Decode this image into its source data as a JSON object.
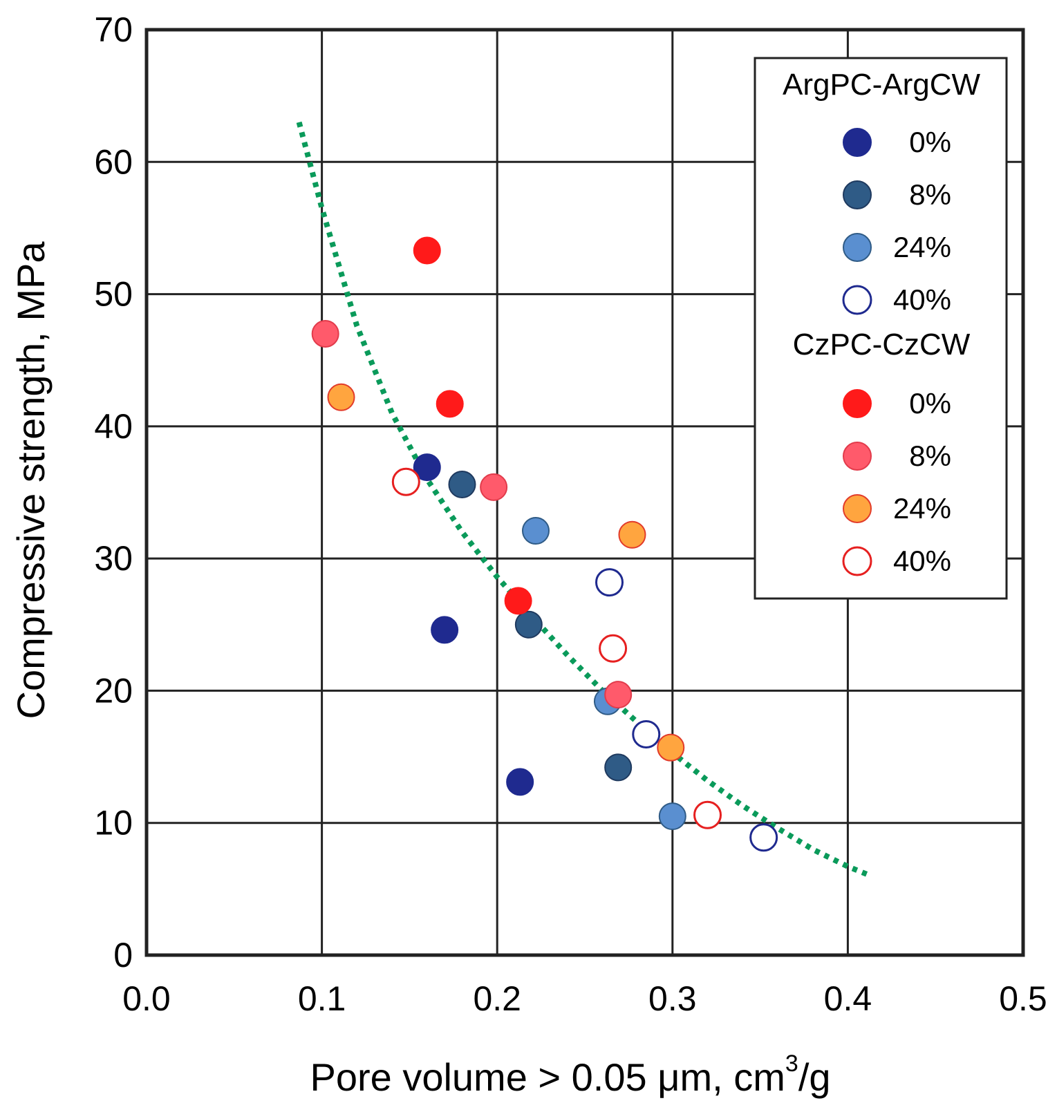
{
  "chart_data": {
    "type": "scatter",
    "xlabel_main": "Pore volume > 0.05 μm, cm",
    "xlabel_sup": "3",
    "xlabel_tail": "/g",
    "ylabel": "Compressive strength, MPa",
    "xlim": [
      0.0,
      0.5
    ],
    "ylim": [
      0,
      70
    ],
    "xticks": [
      "0.0",
      "0.1",
      "0.2",
      "0.3",
      "0.4",
      "0.5"
    ],
    "yticks": [
      "0",
      "10",
      "20",
      "30",
      "40",
      "50",
      "60",
      "70"
    ],
    "grid": true,
    "legend_position": "top-right",
    "legend_groups": [
      {
        "title": "ArgPC-ArgCW",
        "series": [
          {
            "name": "0%",
            "fill": "#1f2a8f",
            "stroke": "#1f2a8f",
            "hollow": false,
            "points": [
              [
                0.16,
                36.9
              ],
              [
                0.17,
                24.6
              ],
              [
                0.213,
                13.1
              ]
            ]
          },
          {
            "name": "8%",
            "fill": "#2f5b86",
            "stroke": "#1f3a5f",
            "hollow": false,
            "points": [
              [
                0.18,
                35.6
              ],
              [
                0.218,
                25.0
              ],
              [
                0.269,
                14.2
              ]
            ]
          },
          {
            "name": "24%",
            "fill": "#5a8fd0",
            "stroke": "#2f5b86",
            "hollow": false,
            "points": [
              [
                0.222,
                32.1
              ],
              [
                0.263,
                19.2
              ],
              [
                0.3,
                10.5
              ]
            ]
          },
          {
            "name": "40%",
            "fill": "#ffffff",
            "stroke": "#1f2a8f",
            "hollow": true,
            "points": [
              [
                0.264,
                28.2
              ],
              [
                0.285,
                16.7
              ],
              [
                0.352,
                8.9
              ]
            ]
          }
        ]
      },
      {
        "title": "CzPC-CzCW",
        "series": [
          {
            "name": "0%",
            "fill": "#ff1a1a",
            "stroke": "#ff1a1a",
            "hollow": false,
            "points": [
              [
                0.16,
                53.3
              ],
              [
                0.173,
                41.7
              ],
              [
                0.212,
                26.8
              ]
            ]
          },
          {
            "name": "8%",
            "fill": "#ff5a6b",
            "stroke": "#e23b4b",
            "hollow": false,
            "points": [
              [
                0.102,
                47.0
              ],
              [
                0.198,
                35.4
              ],
              [
                0.269,
                19.7
              ]
            ]
          },
          {
            "name": "24%",
            "fill": "#ffa53f",
            "stroke": "#e23b2a",
            "hollow": false,
            "points": [
              [
                0.111,
                42.2
              ],
              [
                0.277,
                31.8
              ],
              [
                0.299,
                15.7
              ]
            ]
          },
          {
            "name": "40%",
            "fill": "#ffffff",
            "stroke": "#e62020",
            "hollow": true,
            "points": [
              [
                0.148,
                35.8
              ],
              [
                0.266,
                23.2
              ],
              [
                0.32,
                10.6
              ]
            ]
          }
        ]
      }
    ],
    "trendline": {
      "style": "dotted",
      "color": "#0a9a5a",
      "points": [
        [
          0.087,
          63.0
        ],
        [
          0.1,
          56.5
        ],
        [
          0.12,
          47.6
        ],
        [
          0.14,
          41.0
        ],
        [
          0.16,
          36.0
        ],
        [
          0.18,
          32.0
        ],
        [
          0.2,
          28.6
        ],
        [
          0.22,
          25.6
        ],
        [
          0.24,
          22.7
        ],
        [
          0.26,
          20.0
        ],
        [
          0.28,
          17.6
        ],
        [
          0.3,
          15.3
        ],
        [
          0.32,
          13.2
        ],
        [
          0.34,
          11.3
        ],
        [
          0.36,
          9.6
        ],
        [
          0.38,
          8.0
        ],
        [
          0.4,
          6.7
        ],
        [
          0.413,
          6.0
        ]
      ]
    }
  }
}
